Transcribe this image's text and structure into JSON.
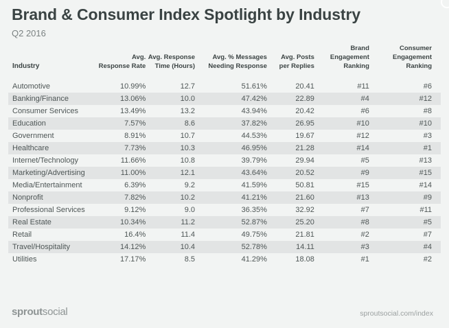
{
  "title": "Brand & Consumer Index Spotlight by Industry",
  "subtitle": "Q2 2016",
  "table": {
    "headers": {
      "industry": "Industry",
      "rate": [
        "Avg.",
        "Response Rate"
      ],
      "time": [
        "Avg. Response",
        "Time (Hours)"
      ],
      "messages": [
        "Avg. % Messages",
        "Needing Response"
      ],
      "posts": [
        "Avg. Posts",
        "per Replies"
      ],
      "brand": [
        "Brand",
        "Engagement",
        "Ranking"
      ],
      "consumer": [
        "Consumer",
        "Engagement",
        "Ranking"
      ]
    },
    "rows": [
      {
        "industry": "Automotive",
        "rate": "10.99%",
        "time": "12.7",
        "messages": "51.61%",
        "posts": "20.41",
        "brand": "#11",
        "consumer": "#6"
      },
      {
        "industry": "Banking/Finance",
        "rate": "13.06%",
        "time": "10.0",
        "messages": "47.42%",
        "posts": "22.89",
        "brand": "#4",
        "consumer": "#12"
      },
      {
        "industry": "Consumer Services",
        "rate": "13.49%",
        "time": "13.2",
        "messages": "43.94%",
        "posts": "20.42",
        "brand": "#6",
        "consumer": "#8"
      },
      {
        "industry": "Education",
        "rate": "7.57%",
        "time": "8.6",
        "messages": "37.82%",
        "posts": "26.95",
        "brand": "#10",
        "consumer": "#10"
      },
      {
        "industry": "Government",
        "rate": "8.91%",
        "time": "10.7",
        "messages": "44.53%",
        "posts": "19.67",
        "brand": "#12",
        "consumer": "#3"
      },
      {
        "industry": "Healthcare",
        "rate": "7.73%",
        "time": "10.3",
        "messages": "46.95%",
        "posts": "21.28",
        "brand": "#14",
        "consumer": "#1"
      },
      {
        "industry": "Internet/Technology",
        "rate": "11.66%",
        "time": "10.8",
        "messages": "39.79%",
        "posts": "29.94",
        "brand": "#5",
        "consumer": "#13"
      },
      {
        "industry": "Marketing/Advertising",
        "rate": "11.00%",
        "time": "12.1",
        "messages": "43.64%",
        "posts": "20.52",
        "brand": "#9",
        "consumer": "#15"
      },
      {
        "industry": "Media/Entertainment",
        "rate": "6.39%",
        "time": "9.2",
        "messages": "41.59%",
        "posts": "50.81",
        "brand": "#15",
        "consumer": "#14"
      },
      {
        "industry": "Nonprofit",
        "rate": "7.82%",
        "time": "10.2",
        "messages": "41.21%",
        "posts": "21.60",
        "brand": "#13",
        "consumer": "#9"
      },
      {
        "industry": "Professional Services",
        "rate": "9.12%",
        "time": "9.0",
        "messages": "36.35%",
        "posts": "32.92",
        "brand": "#7",
        "consumer": "#11"
      },
      {
        "industry": "Real Estate",
        "rate": "10.34%",
        "time": "11.2",
        "messages": "52.87%",
        "posts": "25.20",
        "brand": "#8",
        "consumer": "#5"
      },
      {
        "industry": "Retail",
        "rate": "16.4%",
        "time": "11.4",
        "messages": "49.75%",
        "posts": "21.81",
        "brand": "#2",
        "consumer": "#7"
      },
      {
        "industry": "Travel/Hospitality",
        "rate": "14.12%",
        "time": "10.4",
        "messages": "52.78%",
        "posts": "14.11",
        "brand": "#3",
        "consumer": "#4"
      },
      {
        "industry": "Utilities",
        "rate": "17.17%",
        "time": "8.5",
        "messages": "41.29%",
        "posts": "18.08",
        "brand": "#1",
        "consumer": "#2"
      }
    ]
  },
  "footer": {
    "logo_bold": "sprout",
    "logo_light": "social",
    "url": "sproutsocial.com/index"
  },
  "colors": {
    "background": "#f2f4f3",
    "stripe": "#e2e4e4",
    "title": "#3a4343"
  }
}
